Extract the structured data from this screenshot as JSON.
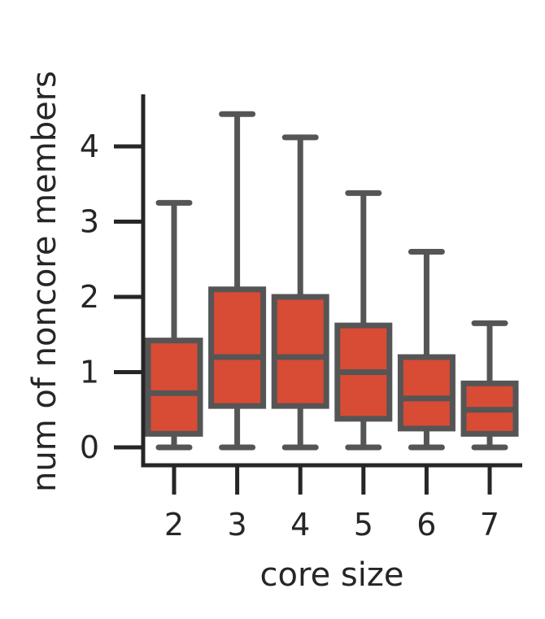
{
  "chart_data": {
    "type": "box",
    "xlabel": "core size",
    "ylabel": "num of noncore members",
    "categories": [
      "2",
      "3",
      "4",
      "5",
      "6",
      "7"
    ],
    "y_ticks": [
      "0",
      "1",
      "2",
      "3",
      "4"
    ],
    "ylim": [
      -0.25,
      4.7
    ],
    "grid": false,
    "boxes": [
      {
        "category": "2",
        "whisker_low": 0,
        "q1": 0.18,
        "median": 0.72,
        "q3": 1.42,
        "whisker_high": 3.25
      },
      {
        "category": "3",
        "whisker_low": 0,
        "q1": 0.55,
        "median": 1.2,
        "q3": 2.1,
        "whisker_high": 4.43
      },
      {
        "category": "4",
        "whisker_low": 0,
        "q1": 0.55,
        "median": 1.2,
        "q3": 2.0,
        "whisker_high": 4.12
      },
      {
        "category": "5",
        "whisker_low": 0,
        "q1": 0.38,
        "median": 1.0,
        "q3": 1.62,
        "whisker_high": 3.38
      },
      {
        "category": "6",
        "whisker_low": 0,
        "q1": 0.25,
        "median": 0.65,
        "q3": 1.2,
        "whisker_high": 2.6
      },
      {
        "category": "7",
        "whisker_low": 0,
        "q1": 0.18,
        "median": 0.5,
        "q3": 0.85,
        "whisker_high": 1.65
      }
    ],
    "box_color": "#d84b35",
    "line_color": "#555555",
    "axis_color": "#262626"
  }
}
